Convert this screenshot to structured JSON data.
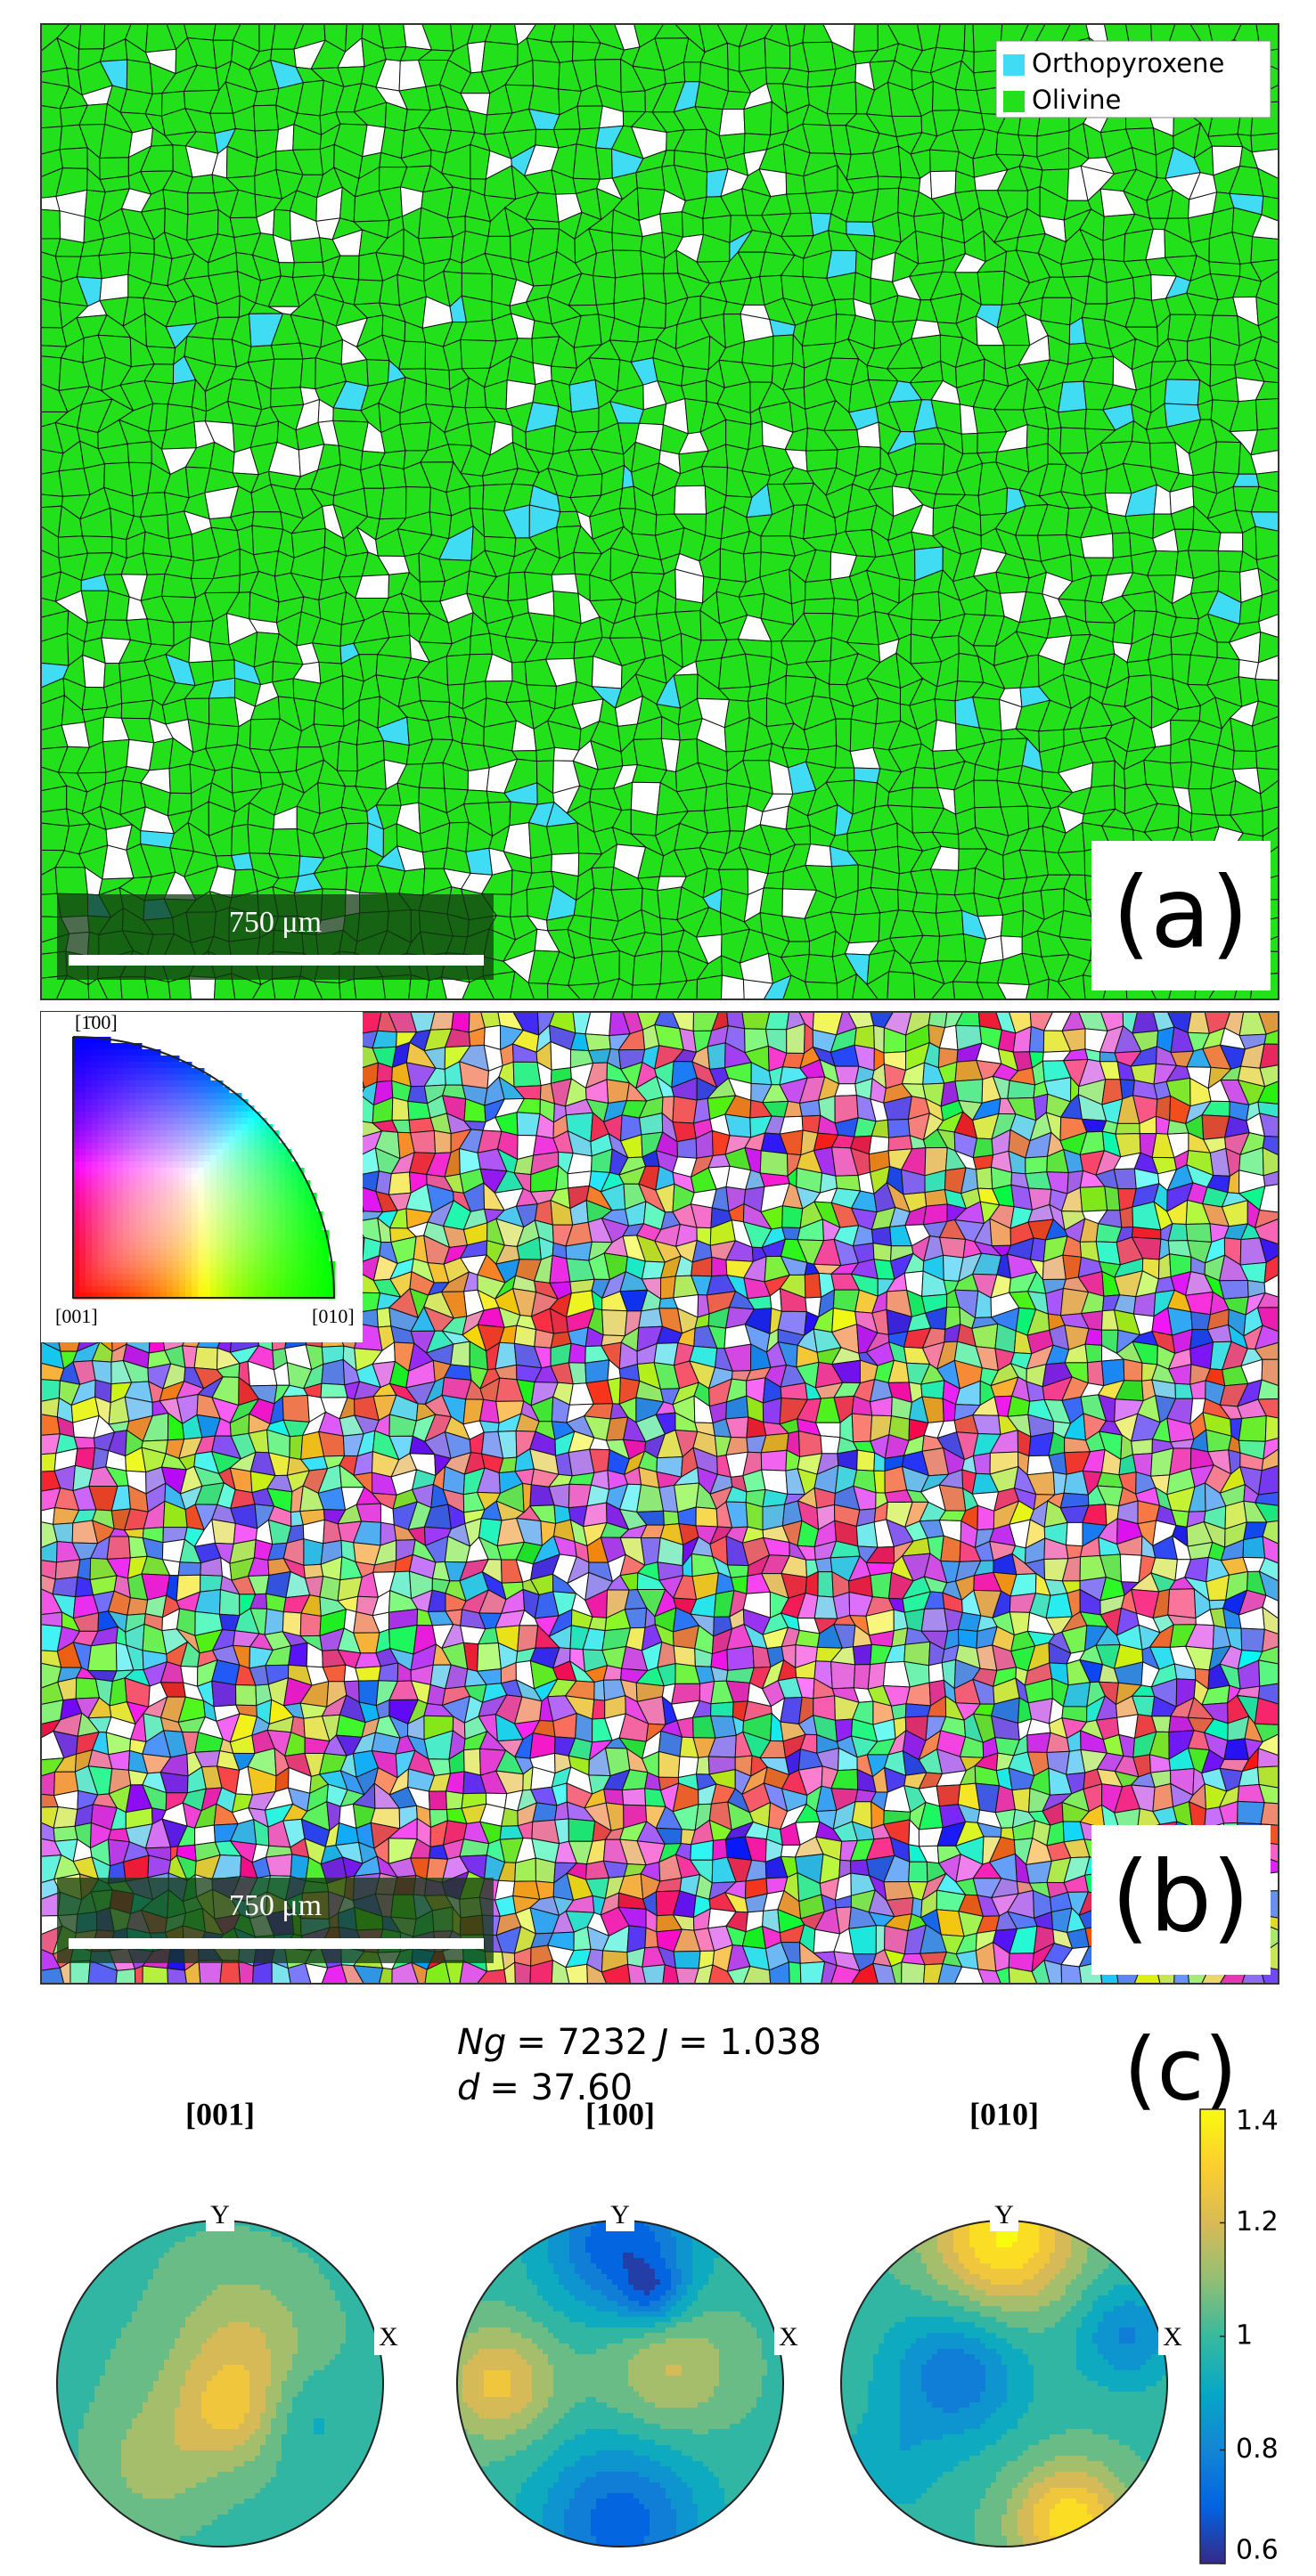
{
  "panel_a": {
    "legend": [
      {
        "label": "Orthopyroxene",
        "color": "#3fdcf4"
      },
      {
        "label": "Olivine",
        "color": "#22e01a"
      }
    ],
    "scale_bar": "750 μm",
    "label": "(a)"
  },
  "panel_b": {
    "ipf_key": {
      "top": "[1̄00]",
      "left": "[001]",
      "right": "[010]"
    },
    "scale_bar": "750 μm",
    "label": "(b)"
  },
  "panel_c": {
    "stats": {
      "ng_symbol": "Ng",
      "ng_value": "= 7232",
      "j_symbol": "J",
      "j_value": "= 1.038",
      "d_symbol": "d",
      "d_value": "= 37.60"
    },
    "label": "(c)",
    "pole_figures": [
      {
        "title": "[001]",
        "y_axis": "Y",
        "x_axis": "X"
      },
      {
        "title": "[100]",
        "y_axis": "Y",
        "x_axis": "X"
      },
      {
        "title": "[010]",
        "y_axis": "Y",
        "x_axis": "X"
      }
    ],
    "colorbar": {
      "lim": [
        0.6,
        1.4
      ],
      "ticks": [
        0.6,
        0.8,
        1,
        1.2,
        1.4
      ]
    }
  }
}
